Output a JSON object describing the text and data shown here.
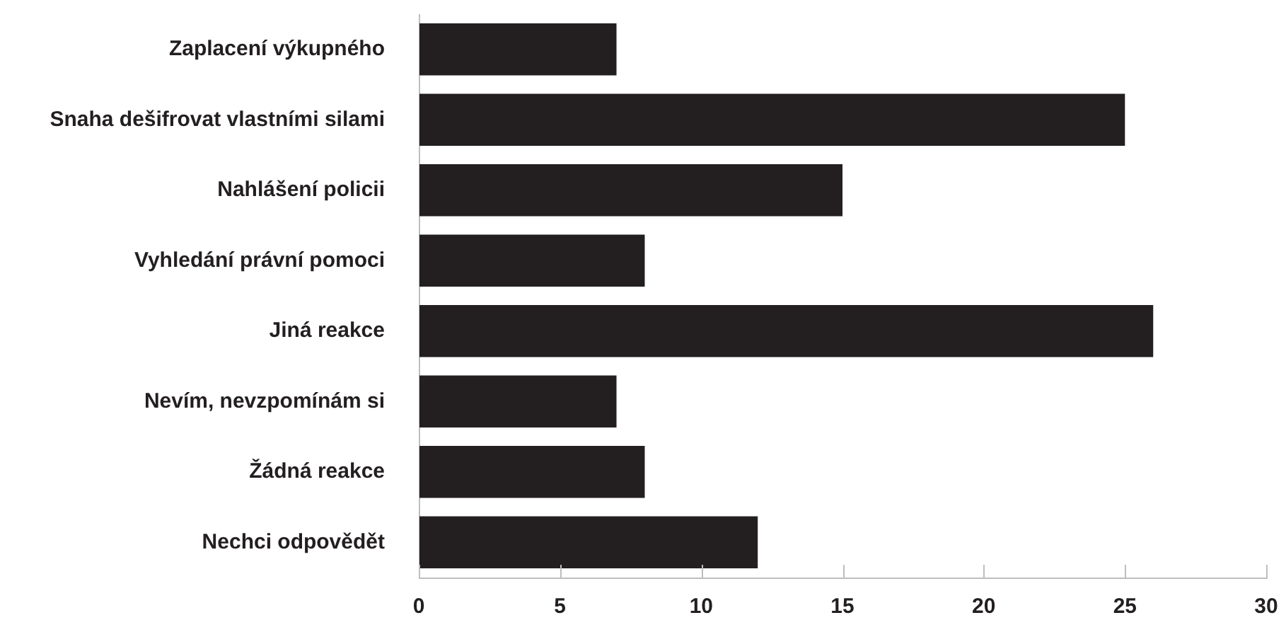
{
  "chart_data": {
    "type": "bar",
    "orientation": "horizontal",
    "categories": [
      "Zaplacení výkupného",
      "Snaha dešifrovat vlastními silami",
      "Nahlášení policii",
      "Vyhledání právní pomoci",
      "Jiná reakce",
      "Nevím, nevzpomínám si",
      "Žádná reakce",
      "Nechci odpovědět"
    ],
    "values": [
      7,
      25,
      15,
      8,
      26,
      7,
      8,
      12
    ],
    "color": "#231f20",
    "xlim": [
      0,
      30
    ],
    "xticks": [
      0,
      5,
      10,
      15,
      20,
      25,
      30
    ],
    "grid": false,
    "legend": false
  }
}
